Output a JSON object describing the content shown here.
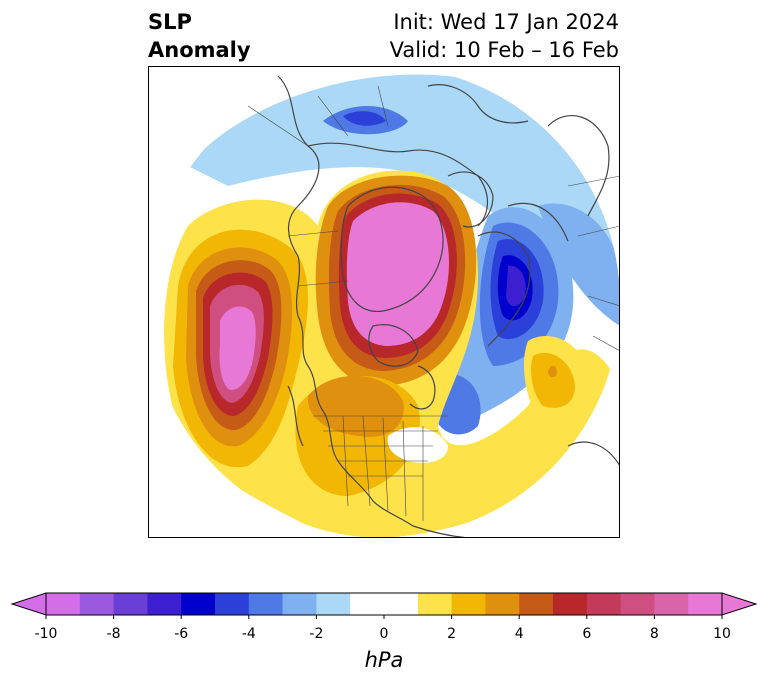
{
  "header": {
    "title_line1": "SLP",
    "title_line2": "Anomaly",
    "init": "Init: Wed 17 Jan 2024",
    "valid": "Valid: 10 Feb – 16 Feb"
  },
  "colorbar": {
    "min": -10,
    "max": 10,
    "step": 1,
    "units": "hPa",
    "extend": "both",
    "ticks": [
      "-10",
      "-8",
      "-6",
      "-4",
      "-2",
      "0",
      "2",
      "4",
      "6",
      "8",
      "10"
    ],
    "colors": [
      "#d46ee6",
      "#9b59e0",
      "#6a3fd6",
      "#3c1fd1",
      "#0000cc",
      "#2b3fd9",
      "#4f7ae6",
      "#7fb1f0",
      "#abd8f7",
      "#ffffff",
      "#ffffff",
      "#fde24a",
      "#f2b705",
      "#e0900f",
      "#c65a17",
      "#b8272a",
      "#c43a5a",
      "#cf4f80",
      "#d964aa",
      "#e878d6"
    ]
  },
  "map": {
    "projection": "north-polar-stereographic",
    "features": [
      "coastlines",
      "country-borders",
      "us-state-borders"
    ]
  }
}
